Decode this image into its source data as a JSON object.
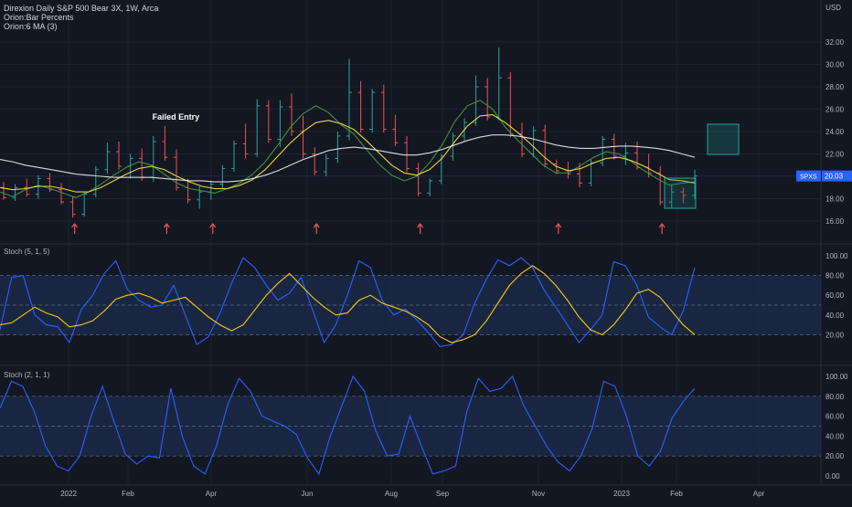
{
  "header": {
    "symbol_title": "Direxion Daily S&P 500 Bear 3X, 1W, Arca",
    "indicator_1": "Orion:Bar Percents",
    "indicator_2": "Orion:6 MA (3)",
    "currency": "USD"
  },
  "colors": {
    "background": "#131722",
    "grid": "#1e2230",
    "bar_up": "#26a69a",
    "bar_down": "#ef5350",
    "bar_neutral": "#e6e6e6",
    "ma_fast": "#43a047",
    "ma_mid": "#ffeb3b",
    "ma_slow": "#f0f0f0",
    "stoch_k": "#2962ff",
    "stoch_d": "#f9c80e",
    "band_fill": "#1a2b4a",
    "price_tag": "#2962ff",
    "arrow": "#ef5350",
    "target_box": "#1e6f6f"
  },
  "chart_data": [
    {
      "type": "line",
      "pane": "price",
      "title": "Direxion Daily S&P 500 Bear 3X, 1W, Arca",
      "ylim": [
        15,
        33
      ],
      "yticks": [
        "16.00",
        "18.00",
        "20.00",
        "22.00",
        "24.00",
        "26.00",
        "28.00",
        "30.00",
        "32.00"
      ],
      "last_price_label": "20.03",
      "symbol_label": "SPXS",
      "annotation": "Failed Entry",
      "series": [
        {
          "name": "MA fast",
          "values": [
            18.6,
            18.2,
            18.8,
            19.2,
            18.9,
            18.5,
            18.1,
            18.6,
            19.3,
            20.1,
            20.8,
            21.3,
            21.0,
            20.2,
            19.4,
            18.9,
            18.7,
            18.5,
            18.9,
            19.4,
            20.2,
            21.3,
            22.8,
            24.4,
            25.6,
            26.3,
            25.7,
            24.6,
            23.8,
            22.4,
            21.1,
            20.1,
            19.6,
            20.0,
            21.2,
            22.8,
            24.9,
            26.3,
            26.8,
            26.0,
            24.4,
            23.2,
            22.1,
            21.0,
            20.3,
            20.3,
            21.0,
            21.7,
            22.2,
            22.0,
            21.3,
            20.5,
            19.8,
            19.2,
            19.4,
            19.5
          ]
        },
        {
          "name": "MA mid",
          "values": [
            19.0,
            18.8,
            18.9,
            19.1,
            19.1,
            18.9,
            18.6,
            18.6,
            19.0,
            19.6,
            20.2,
            20.7,
            20.9,
            20.6,
            20.0,
            19.5,
            19.1,
            18.9,
            18.9,
            19.2,
            19.7,
            20.6,
            21.8,
            23.0,
            24.0,
            24.8,
            25.0,
            24.7,
            24.2,
            23.2,
            22.1,
            21.0,
            20.3,
            20.1,
            20.6,
            21.6,
            23.1,
            24.5,
            25.4,
            25.5,
            24.8,
            23.9,
            22.9,
            21.8,
            20.9,
            20.5,
            20.7,
            21.2,
            21.6,
            21.7,
            21.4,
            20.9,
            20.3,
            19.7,
            19.6,
            19.4
          ]
        },
        {
          "name": "MA slow",
          "values": [
            21.5,
            21.3,
            21.0,
            20.8,
            20.6,
            20.4,
            20.2,
            20.1,
            20.0,
            19.9,
            19.9,
            19.9,
            19.9,
            19.8,
            19.7,
            19.6,
            19.6,
            19.5,
            19.5,
            19.6,
            19.8,
            20.1,
            20.5,
            21.0,
            21.5,
            21.9,
            22.3,
            22.5,
            22.6,
            22.5,
            22.3,
            22.1,
            21.9,
            21.9,
            22.1,
            22.4,
            22.8,
            23.2,
            23.5,
            23.7,
            23.7,
            23.6,
            23.4,
            23.1,
            22.8,
            22.6,
            22.5,
            22.5,
            22.6,
            22.7,
            22.7,
            22.6,
            22.5,
            22.3,
            22.0,
            21.7
          ]
        }
      ],
      "ohlc_bars": [
        [
          19.0,
          19.5,
          17.9,
          18.1
        ],
        [
          18.1,
          19.3,
          17.8,
          19.0
        ],
        [
          19.0,
          19.8,
          18.2,
          18.4
        ],
        [
          18.4,
          20.1,
          18.0,
          19.8
        ],
        [
          19.8,
          20.3,
          18.6,
          18.8
        ],
        [
          18.8,
          19.4,
          17.5,
          17.7
        ],
        [
          17.7,
          18.2,
          16.3,
          16.6
        ],
        [
          16.6,
          18.6,
          16.4,
          18.4
        ],
        [
          18.4,
          20.9,
          18.1,
          20.6
        ],
        [
          20.6,
          23.0,
          20.2,
          22.2
        ],
        [
          22.2,
          23.1,
          20.6,
          20.9
        ],
        [
          20.9,
          22.0,
          19.8,
          21.6
        ],
        [
          21.6,
          22.5,
          19.6,
          19.9
        ],
        [
          19.9,
          23.6,
          19.5,
          23.1
        ],
        [
          23.1,
          24.5,
          21.4,
          21.7
        ],
        [
          21.7,
          22.4,
          18.7,
          19.0
        ],
        [
          19.0,
          19.8,
          17.6,
          17.9
        ],
        [
          17.9,
          19.1,
          17.1,
          18.6
        ],
        [
          18.6,
          19.6,
          17.9,
          19.3
        ],
        [
          19.3,
          21.0,
          18.9,
          20.7
        ],
        [
          20.7,
          23.2,
          20.4,
          22.9
        ],
        [
          22.9,
          24.7,
          21.6,
          22.0
        ],
        [
          22.0,
          26.9,
          21.7,
          26.3
        ],
        [
          26.3,
          26.8,
          23.0,
          23.3
        ],
        [
          23.3,
          26.8,
          22.6,
          26.2
        ],
        [
          26.2,
          27.4,
          23.6,
          24.0
        ],
        [
          24.0,
          25.4,
          21.6,
          22.0
        ],
        [
          22.0,
          22.6,
          20.1,
          20.4
        ],
        [
          20.4,
          22.0,
          20.0,
          21.6
        ],
        [
          21.6,
          24.0,
          21.2,
          23.6
        ],
        [
          23.6,
          30.5,
          23.2,
          27.5
        ],
        [
          27.5,
          28.5,
          23.9,
          24.2
        ],
        [
          24.2,
          27.8,
          23.9,
          27.5
        ],
        [
          27.5,
          28.2,
          23.9,
          24.2
        ],
        [
          24.2,
          25.5,
          22.7,
          23.0
        ],
        [
          23.0,
          23.6,
          20.4,
          20.7
        ],
        [
          20.7,
          21.2,
          18.2,
          18.5
        ],
        [
          18.5,
          19.8,
          18.2,
          19.6
        ],
        [
          19.6,
          22.0,
          19.3,
          21.8
        ],
        [
          21.8,
          23.9,
          21.4,
          23.6
        ],
        [
          23.6,
          25.2,
          23.2,
          24.8
        ],
        [
          24.8,
          29.0,
          24.5,
          28.0
        ],
        [
          28.0,
          28.8,
          25.0,
          25.3
        ],
        [
          25.3,
          31.5,
          25.0,
          28.8
        ],
        [
          28.8,
          29.3,
          23.5,
          23.8
        ],
        [
          23.8,
          24.8,
          21.7,
          22.0
        ],
        [
          22.0,
          24.5,
          21.7,
          24.1
        ],
        [
          24.1,
          24.6,
          20.8,
          21.1
        ],
        [
          21.1,
          21.5,
          20.2,
          20.5
        ],
        [
          20.5,
          21.3,
          19.8,
          20.2
        ],
        [
          20.2,
          21.2,
          19.0,
          19.4
        ],
        [
          19.4,
          21.5,
          19.1,
          21.2
        ],
        [
          21.2,
          23.6,
          20.9,
          23.3
        ],
        [
          23.3,
          23.8,
          21.5,
          21.8
        ],
        [
          21.8,
          23.0,
          21.0,
          22.1
        ],
        [
          22.1,
          23.1,
          20.6,
          20.8
        ],
        [
          20.8,
          22.0,
          19.9,
          20.3
        ],
        [
          20.3,
          20.9,
          17.4,
          17.7
        ],
        [
          17.7,
          19.3,
          17.2,
          18.6
        ],
        [
          18.6,
          19.0,
          17.6,
          18.3
        ],
        [
          18.3,
          20.6,
          18.0,
          20.03
        ]
      ],
      "arrow_bars": [
        6,
        14,
        18,
        27,
        36,
        48,
        57
      ],
      "annotation_bar": 14
    },
    {
      "type": "line",
      "pane": "stoch1",
      "title": "Stoch (5, 1, 5)",
      "ylim": [
        0,
        100
      ],
      "yticks": [
        "20.00",
        "40.00",
        "60.00",
        "80.00",
        "100.00"
      ],
      "band": [
        20,
        80
      ],
      "series": [
        {
          "name": "%K",
          "values": [
            25,
            78,
            80,
            40,
            30,
            28,
            12,
            45,
            60,
            82,
            95,
            66,
            55,
            48,
            50,
            70,
            40,
            10,
            18,
            42,
            72,
            98,
            88,
            70,
            55,
            62,
            78,
            45,
            12,
            30,
            60,
            95,
            88,
            55,
            40,
            46,
            35,
            22,
            8,
            10,
            20,
            52,
            76,
            96,
            90,
            98,
            88,
            65,
            48,
            30,
            12,
            25,
            40,
            94,
            90,
            70,
            38,
            28,
            20,
            44,
            88
          ]
        },
        {
          "name": "%D",
          "values": [
            30,
            32,
            40,
            48,
            42,
            38,
            28,
            30,
            34,
            44,
            56,
            60,
            62,
            58,
            52,
            55,
            58,
            48,
            38,
            30,
            24,
            30,
            45,
            60,
            72,
            82,
            70,
            58,
            48,
            40,
            42,
            55,
            60,
            52,
            48,
            44,
            38,
            30,
            18,
            12,
            15,
            20,
            34,
            52,
            70,
            82,
            90,
            82,
            70,
            55,
            38,
            25,
            20,
            30,
            45,
            62,
            66,
            58,
            44,
            30,
            20
          ]
        }
      ]
    },
    {
      "type": "line",
      "pane": "stoch2",
      "title": "Stoch (2, 1, 1)",
      "ylim": [
        0,
        100
      ],
      "yticks": [
        "0.00",
        "20.00",
        "40.00",
        "60.00",
        "80.00",
        "100.00"
      ],
      "band": [
        20,
        80
      ],
      "series": [
        {
          "name": "%K",
          "values": [
            68,
            95,
            90,
            65,
            30,
            10,
            5,
            20,
            60,
            90,
            55,
            22,
            12,
            20,
            18,
            88,
            40,
            10,
            2,
            30,
            72,
            98,
            85,
            60,
            55,
            50,
            42,
            18,
            2,
            40,
            70,
            100,
            85,
            45,
            20,
            22,
            60,
            30,
            2,
            5,
            10,
            65,
            98,
            85,
            88,
            100,
            70,
            50,
            30,
            14,
            5,
            20,
            48,
            95,
            90,
            60,
            20,
            10,
            25,
            58,
            75,
            88
          ]
        }
      ]
    }
  ],
  "x_axis": {
    "labels": [
      "2022",
      "Feb",
      "Apr",
      "Jun",
      "Aug",
      "Sep",
      "Nov",
      "2023",
      "Feb",
      "Apr"
    ]
  }
}
